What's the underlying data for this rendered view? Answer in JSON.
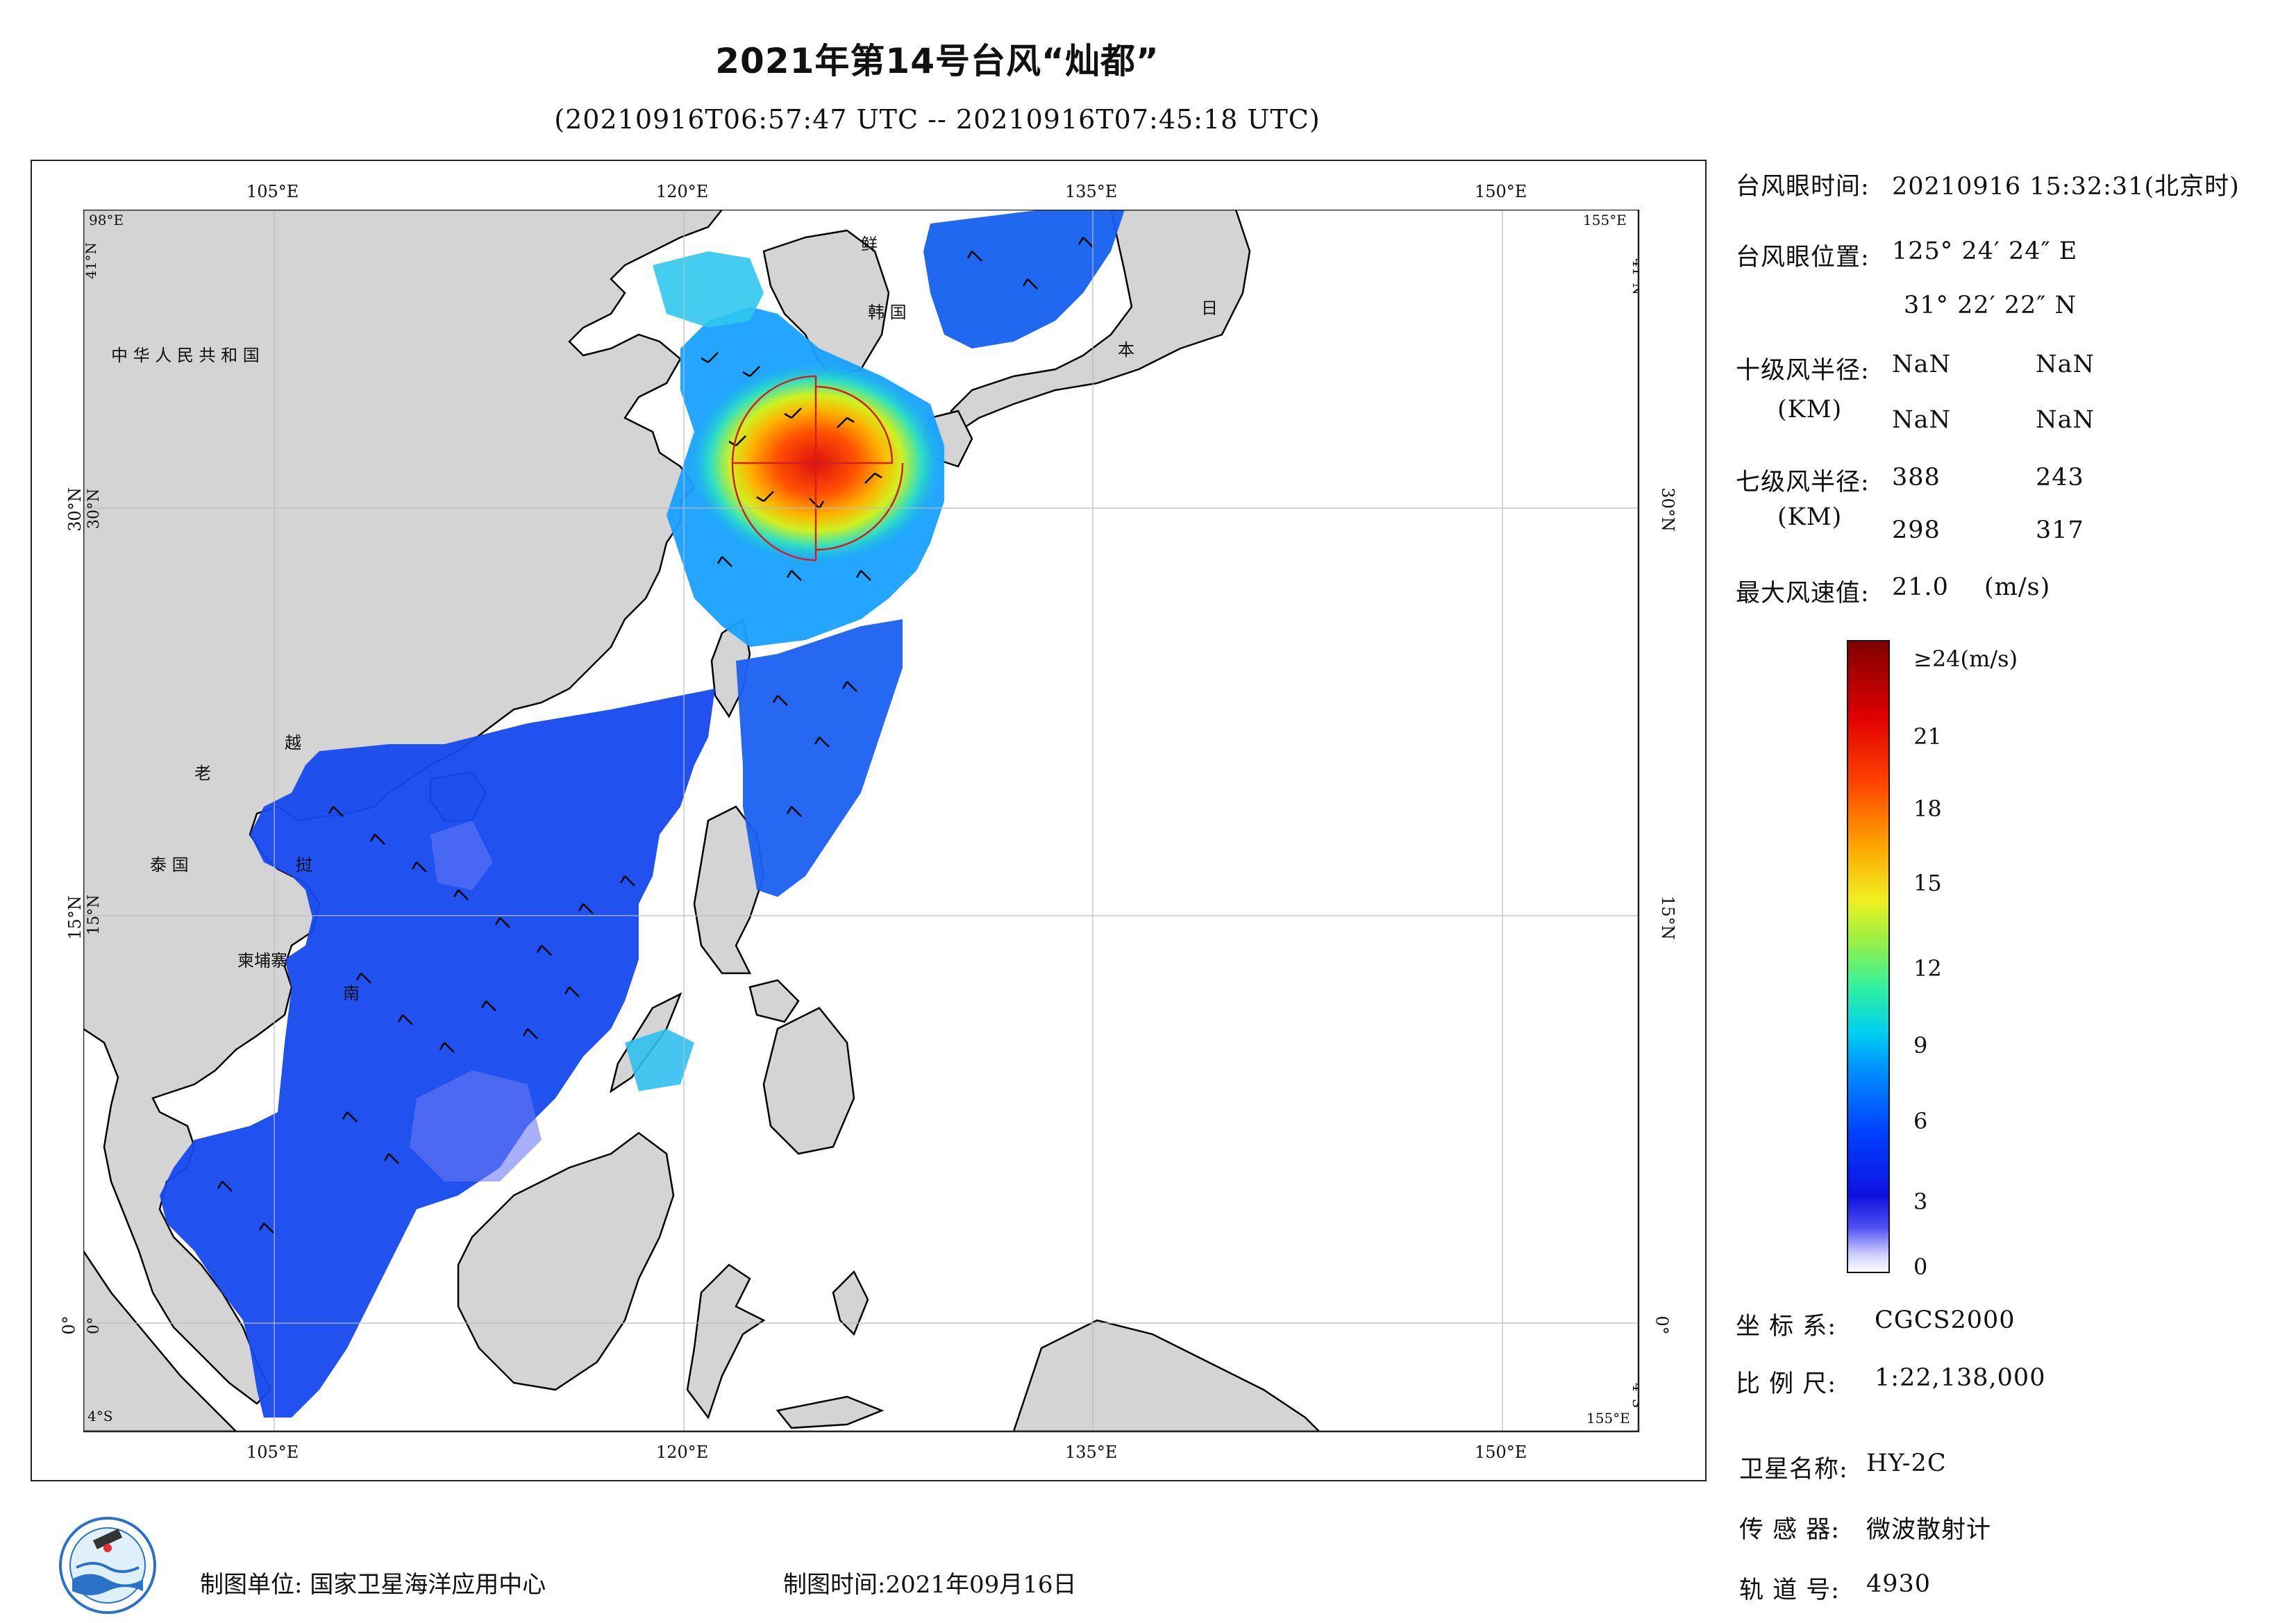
{
  "header": {
    "title": "2021年第14号台风“灿都”",
    "subtitle": "(20210916T06:57:47 UTC -- 20210916T07:45:18 UTC)"
  },
  "map": {
    "top_lon_labels": [
      "105°E",
      "120°E",
      "135°E",
      "150°E"
    ],
    "bottom_lon_labels": [
      "105°E",
      "120°E",
      "135°E",
      "150°E"
    ],
    "left_lat_labels": [
      "30°N",
      "15°N",
      "0°"
    ],
    "right_lat_labels": [
      "30°N",
      "15°N",
      "0°"
    ],
    "corner_labels": {
      "tl_lon": "98°E",
      "tl_lat": "41°N",
      "tr_lon": "155°E",
      "tr_lat": "41°N",
      "bl_lat": "4°S",
      "br_lon": "155°E",
      "br_lat": "4°S"
    },
    "countries": {
      "china": "中 华 人 民 共 和 国",
      "korea_north": "鲜",
      "korea_south": "韩 国",
      "japan_1": "日",
      "japan_2": "本",
      "laos": "老",
      "vietnam_1": "越",
      "vietnam_2": "挝",
      "vietnam_3": "南",
      "thailand": "泰 国",
      "cambodia": "柬埔寨"
    },
    "colors": {
      "land": "#d4d4d4",
      "coast": "#000000",
      "ocean": "#ffffff",
      "radius_circle": "#d02020"
    }
  },
  "info": {
    "eye_time_label": "台风眼时间:",
    "eye_time_value": "20210916 15:32:31(北京时)",
    "eye_pos_label": "台风眼位置:",
    "eye_lon": "125° 24′ 24″ E",
    "eye_lat": "31° 22′ 22″ N",
    "r10_label": "十级风半径:",
    "r10_unit": "(KM)",
    "r10_values": [
      "NaN",
      "NaN",
      "NaN",
      "NaN"
    ],
    "r7_label": "七级风半径:",
    "r7_unit": "(KM)",
    "r7_values": [
      "388",
      "243",
      "298",
      "317"
    ],
    "max_wind_label": "最大风速值:",
    "max_wind_value": "21.0",
    "max_wind_unit": "(m/s)"
  },
  "colorbar": {
    "top_label": "≥24(m/s)",
    "ticks": [
      "21",
      "18",
      "15",
      "12",
      "9",
      "6",
      "3",
      "0"
    ]
  },
  "meta": {
    "crs_label": "坐 标 系:",
    "crs_value": "CGCS2000",
    "scale_label": "比 例 尺:",
    "scale_value": "1:22,138,000",
    "sat_label": "卫星名称:",
    "sat_value": "HY-2C",
    "sensor_label": "传 感 器:",
    "sensor_value": "微波散射计",
    "orbit_label": "轨 道 号:",
    "orbit_value": "4930"
  },
  "footer": {
    "org": "制图单位: 国家卫星海洋应用中心",
    "time": "制图时间:2021年09月16日"
  }
}
